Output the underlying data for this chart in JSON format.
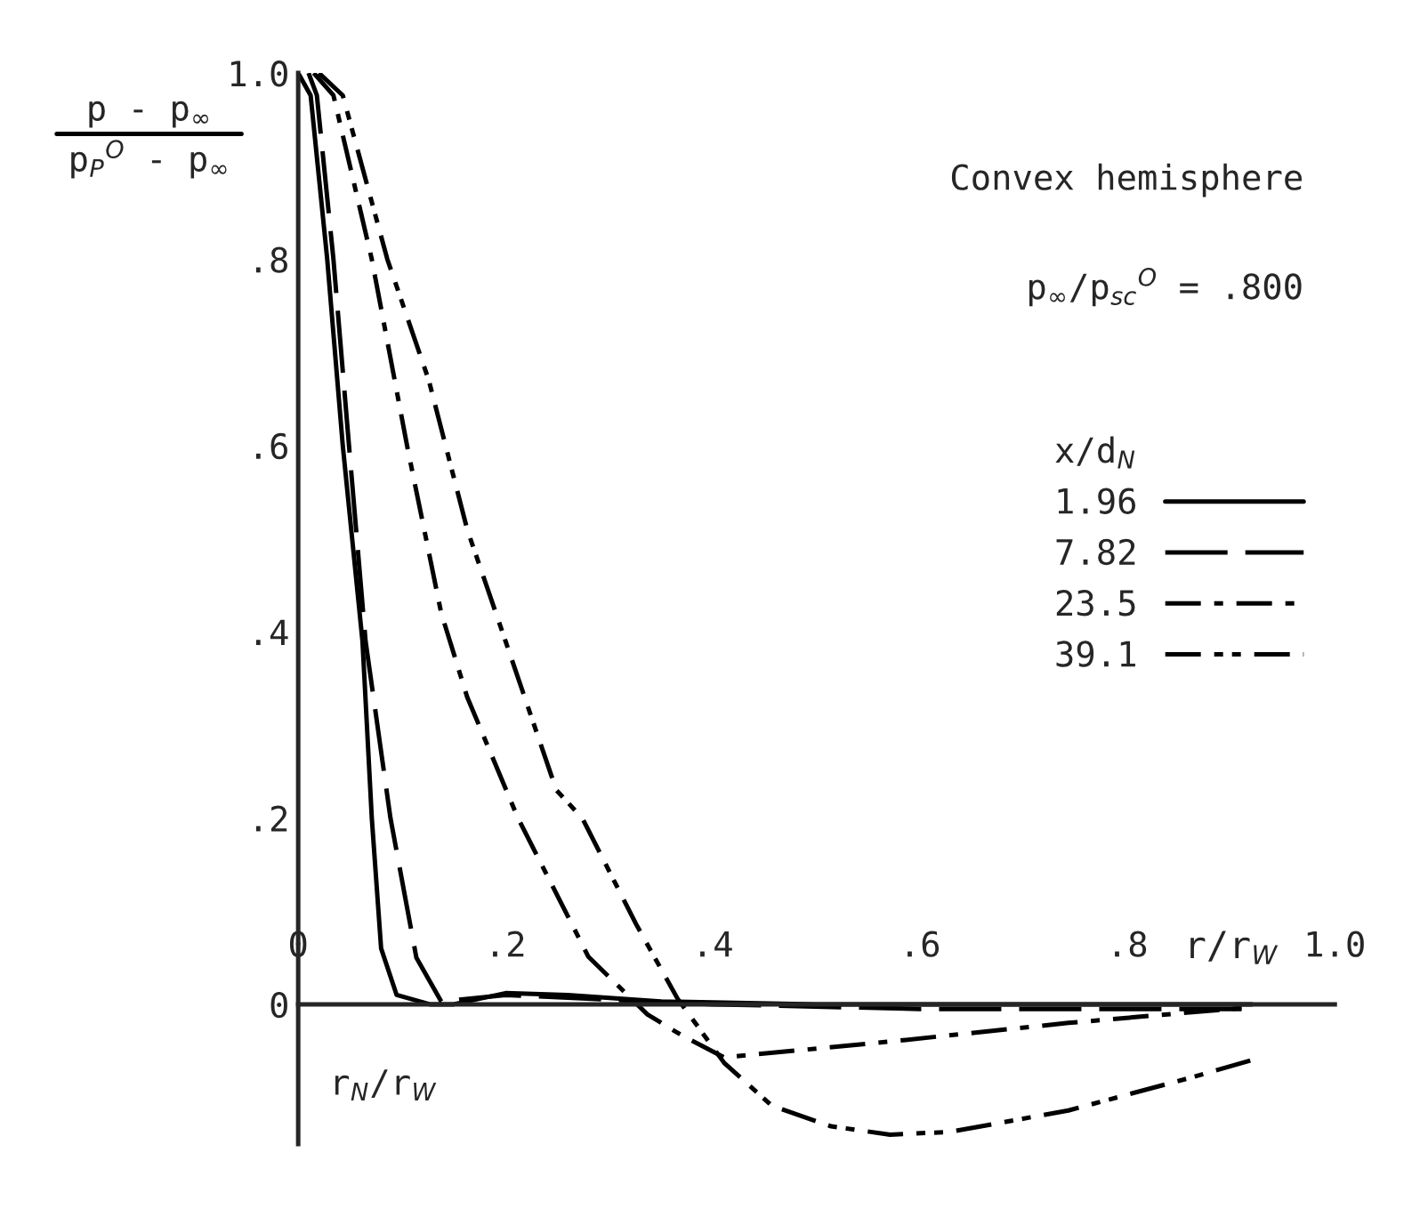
{
  "chart_data": {
    "type": "line",
    "ylabel": "p - p$_{∞}$\np$_{P}$$^{O}$ - p$_{∞}$",
    "xlabel": "r/r$_{W}$",
    "legend_title": "x/d$_{N}$",
    "annotations": [
      "Convex hemisphere",
      "p$_{∞}$/p$_{sc}$$^{O}$ = .800",
      "r$_{N}$/r$_{W}$"
    ],
    "xlim": [
      0,
      1.0
    ],
    "ylim": [
      -0.15,
      1.0
    ],
    "xticks": [
      {
        "value": 0,
        "label": "0"
      },
      {
        "value": 0.2,
        "label": ".2"
      },
      {
        "value": 0.4,
        "label": ".4"
      },
      {
        "value": 0.6,
        "label": ".6"
      },
      {
        "value": 0.8,
        "label": ".8"
      },
      {
        "value": 1.0,
        "label": "1.0"
      }
    ],
    "yticks": [
      0,
      {
        "value": 0.2,
        "label": ".2"
      },
      {
        "value": 0.4,
        "label": ".4"
      },
      {
        "value": 0.6,
        "label": ".6"
      },
      {
        "value": 0.8,
        "label": ".8"
      },
      {
        "value": 1.0,
        "label": "1.0"
      }
    ],
    "grid": false,
    "legend": "right",
    "marker": "none",
    "series": [
      {
        "name": "1.96",
        "color": "#000000",
        "line_style": "solid",
        "x": [
          0,
          0.012,
          0.028,
          0.043,
          0.062,
          0.071,
          0.08,
          0.095,
          0.127,
          0.15,
          0.2,
          0.26,
          0.35,
          0.5,
          0.92
        ],
        "values": [
          1.0,
          0.976,
          0.8,
          0.6,
          0.39,
          0.2,
          0.06,
          0.01,
          0,
          0,
          0.012,
          0.01,
          0.003,
          0,
          0
        ]
      },
      {
        "name": "7.82",
        "color": "#000000",
        "line_style": "dashed",
        "x": [
          0.01,
          0.018,
          0.034,
          0.049,
          0.065,
          0.089,
          0.114,
          0.138,
          0.2,
          0.3,
          0.4,
          0.6,
          0.92
        ],
        "values": [
          1.0,
          0.976,
          0.8,
          0.6,
          0.39,
          0.2,
          0.05,
          0.003,
          0.01,
          0.005,
          0,
          -0.005,
          -0.005
        ]
      },
      {
        "name": "23.5",
        "color": "#000000",
        "line_style": "dashdot",
        "x": [
          0.015,
          0.034,
          0.071,
          0.105,
          0.138,
          0.163,
          0.212,
          0.28,
          0.337,
          0.371,
          0.411,
          0.571,
          0.743,
          0.92
        ],
        "values": [
          1.0,
          0.976,
          0.8,
          0.6,
          0.42,
          0.33,
          0.2,
          0.051,
          -0.011,
          -0.034,
          -0.057,
          -0.04,
          -0.02,
          -0.003
        ]
      },
      {
        "name": "39.1",
        "color": "#000000",
        "line_style": "dashdotdot",
        "x": [
          0.02,
          0.043,
          0.086,
          0.126,
          0.163,
          0.2,
          0.249,
          0.274,
          0.326,
          0.366,
          0.411,
          0.457,
          0.514,
          0.571,
          0.629,
          0.743,
          0.857,
          0.92
        ],
        "values": [
          1.0,
          0.976,
          0.8,
          0.67,
          0.51,
          0.39,
          0.23,
          0.2,
          0.086,
          0.006,
          -0.063,
          -0.109,
          -0.131,
          -0.14,
          -0.137,
          -0.114,
          -0.08,
          -0.06
        ]
      }
    ]
  }
}
